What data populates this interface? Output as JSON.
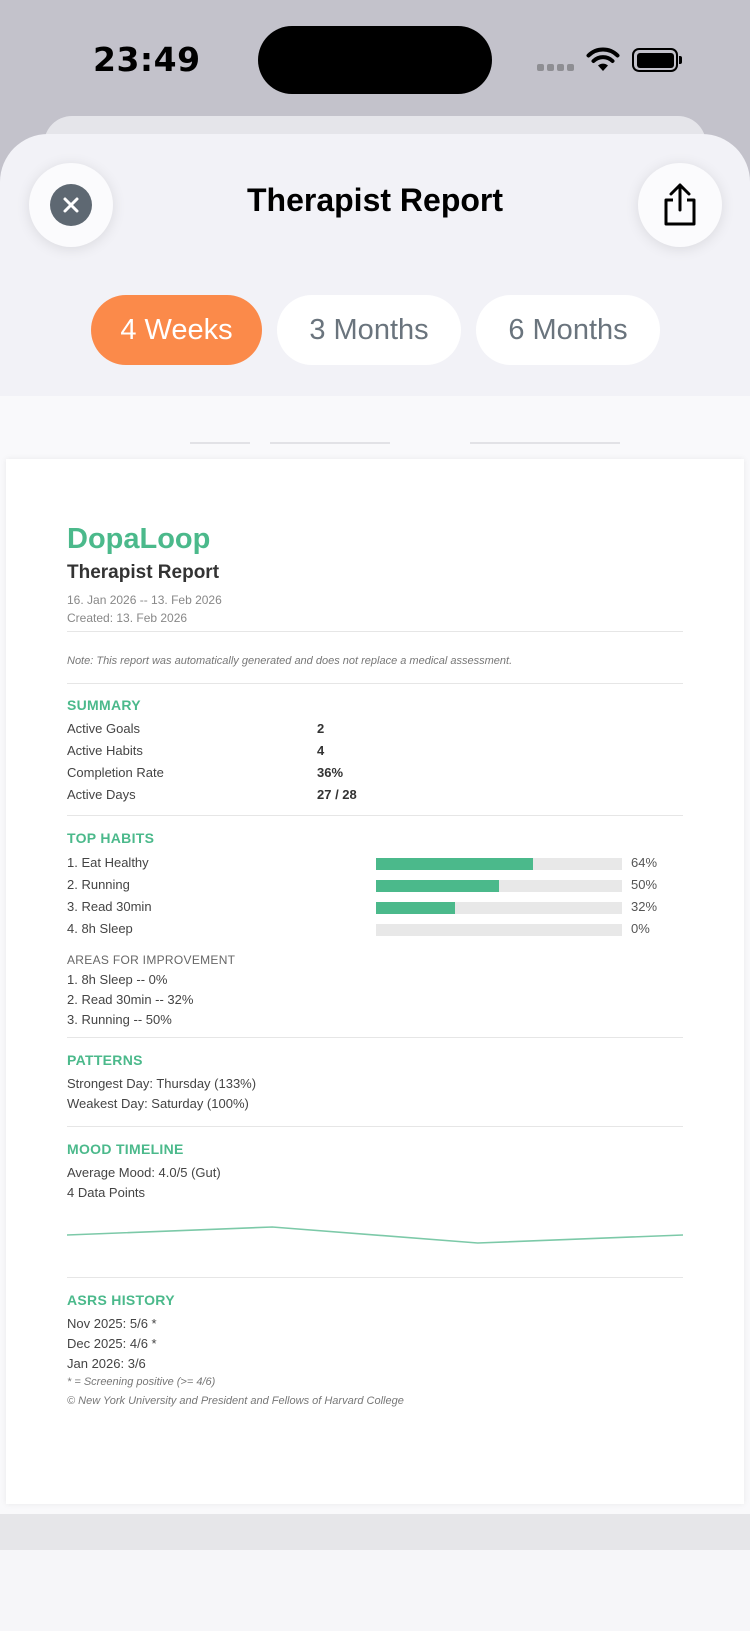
{
  "status_bar": {
    "time": "23:49"
  },
  "sheet": {
    "title": "Therapist Report"
  },
  "range_tabs": [
    {
      "label": "4 Weeks",
      "selected": true
    },
    {
      "label": "3 Months",
      "selected": false
    },
    {
      "label": "6 Months",
      "selected": false
    }
  ],
  "colors": {
    "accent": "#4bb98b",
    "selected_tab": "#fb8a4a"
  },
  "report": {
    "brand": "DopaLoop",
    "title": "Therapist Report",
    "date_range": "16. Jan 2026 -- 13. Feb 2026",
    "created": "Created: 13. Feb 2026",
    "note": "Note: This report was automatically generated and does not replace a medical assessment.",
    "summary": {
      "heading": "SUMMARY",
      "rows": [
        {
          "label": "Active Goals",
          "value": "2"
        },
        {
          "label": "Active Habits",
          "value": "4"
        },
        {
          "label": "Completion Rate",
          "value": "36%"
        },
        {
          "label": "Active Days",
          "value": "27 / 28"
        }
      ]
    },
    "top_habits": {
      "heading": "TOP HABITS",
      "items": [
        {
          "label": "1. Eat Healthy",
          "pct_text": "64%",
          "pct": 64
        },
        {
          "label": "2. Running",
          "pct_text": "50%",
          "pct": 50
        },
        {
          "label": "3. Read 30min",
          "pct_text": "32%",
          "pct": 32
        },
        {
          "label": "4. 8h Sleep",
          "pct_text": "0%",
          "pct": 0
        }
      ]
    },
    "improvement": {
      "heading": "AREAS FOR IMPROVEMENT",
      "items": [
        "1. 8h Sleep -- 0%",
        "2. Read 30min -- 32%",
        "3. Running -- 50%"
      ]
    },
    "patterns": {
      "heading": "PATTERNS",
      "strongest": "Strongest Day: Thursday (133%)",
      "weakest": "Weakest Day: Saturday (100%)"
    },
    "mood": {
      "heading": "MOOD TIMELINE",
      "average": "Average Mood: 4.0/5 (Gut)",
      "points_label": "4 Data Points",
      "values": [
        4.0,
        4.2,
        3.8,
        4.0
      ]
    },
    "asrs": {
      "heading": "ASRS HISTORY",
      "items": [
        "Nov 2025: 5/6 *",
        "Dec 2025: 4/6 *",
        "Jan 2026: 3/6"
      ],
      "footnote": "* = Screening positive (>= 4/6)",
      "copyright": "© New York University and President and Fellows of Harvard College"
    }
  }
}
